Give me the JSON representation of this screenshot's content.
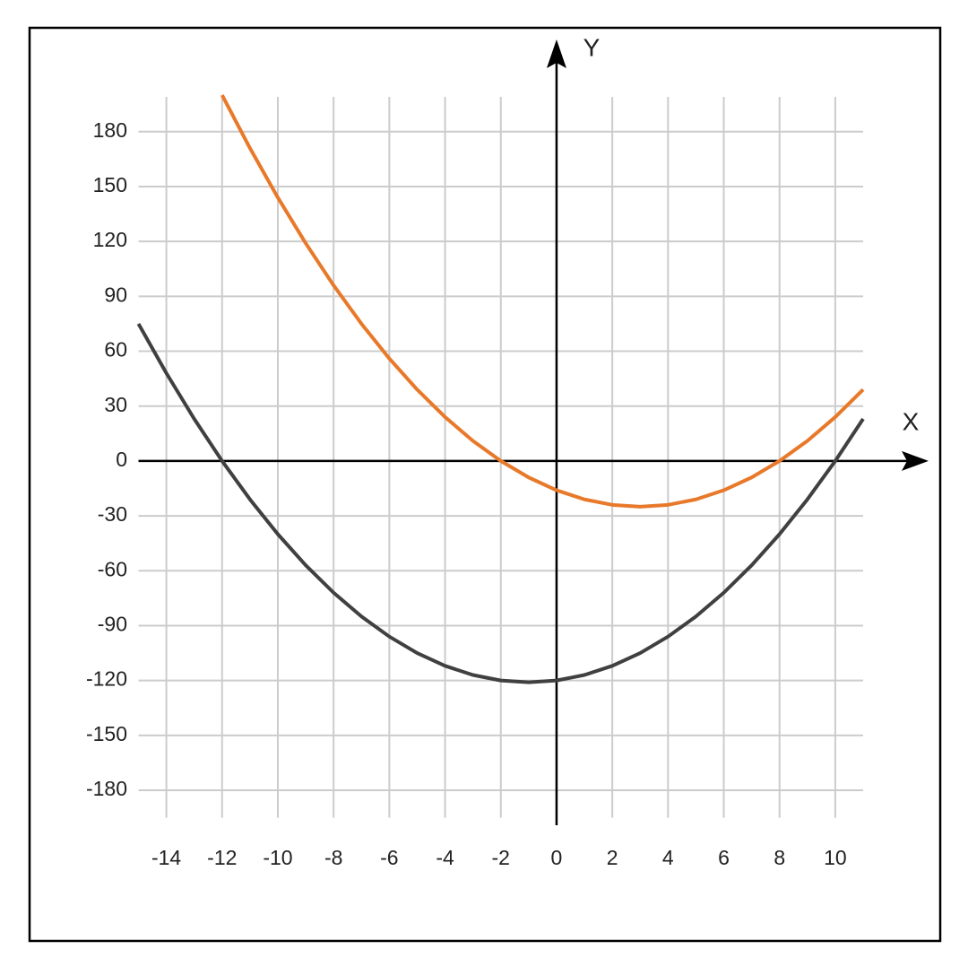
{
  "chart_data": {
    "type": "line",
    "x_axis_label": "X",
    "y_axis_label": "Y",
    "x": [
      -15,
      -14,
      -13,
      -12,
      -11,
      -10,
      -9,
      -8,
      -7,
      -6,
      -5,
      -4,
      -3,
      -2,
      -1,
      0,
      1,
      2,
      3,
      4,
      5,
      6,
      7,
      8,
      9,
      10,
      11
    ],
    "series": [
      {
        "color": "#e8792a",
        "values": [
          null,
          null,
          null,
          200,
          171,
          144,
          119,
          96,
          75,
          56,
          39,
          24,
          11,
          0,
          -9,
          -16,
          -21,
          -24,
          -25,
          -24,
          -21,
          -16,
          -9,
          0,
          11,
          24,
          39
        ]
      },
      {
        "color": "#404040",
        "values": [
          75,
          48,
          23,
          0,
          -21,
          -40,
          -57,
          -72,
          -85,
          -96,
          -105,
          -112,
          -117,
          -120,
          -121,
          -120,
          -117,
          -112,
          -105,
          -96,
          -85,
          -72,
          -57,
          -40,
          -21,
          0,
          23
        ]
      }
    ],
    "xlim": [
      -15,
      11
    ],
    "ylim": [
      -195,
      200
    ],
    "xticks": [
      -14,
      -12,
      -10,
      -8,
      -6,
      -4,
      -2,
      0,
      2,
      4,
      6,
      8,
      10
    ],
    "yticks": [
      -180,
      -150,
      -120,
      -90,
      -60,
      -30,
      0,
      30,
      60,
      90,
      120,
      150,
      180
    ],
    "grid": true
  }
}
